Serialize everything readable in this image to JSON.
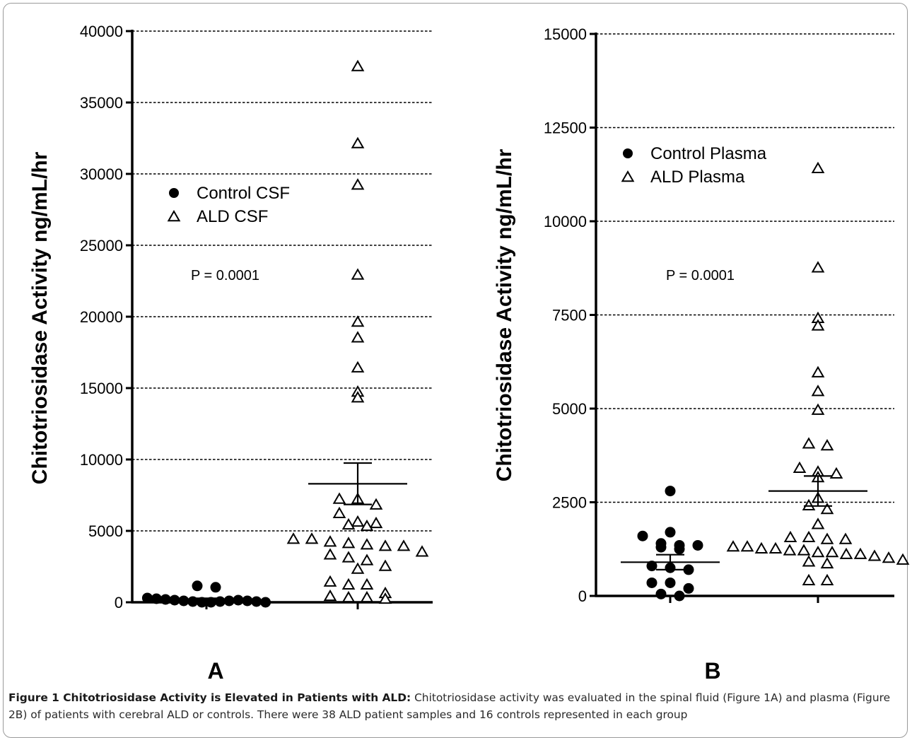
{
  "chart_data": [
    {
      "type": "scatter",
      "panel_label": "A",
      "ylabel": "Chitotriosidase Activity  ng/mL/hr",
      "ylim": [
        0,
        40000
      ],
      "yticks": [
        0,
        5000,
        10000,
        15000,
        20000,
        25000,
        30000,
        35000,
        40000
      ],
      "grid": "dashed horizontal",
      "legend_placement": "upper-left",
      "annotation": "P = 0.0001",
      "groups": [
        {
          "name": "Control CSF",
          "marker": "filled-circle",
          "values": [
            1150,
            1050,
            300,
            250,
            200,
            150,
            100,
            50,
            0,
            0,
            50,
            100,
            150,
            100,
            50,
            0
          ],
          "mean": 200,
          "sem": 80
        },
        {
          "name": "ALD CSF",
          "marker": "open-triangle",
          "values": [
            37500,
            32100,
            29200,
            22900,
            19600,
            18500,
            16400,
            14700,
            14300,
            7200,
            7200,
            6800,
            6200,
            5600,
            5500,
            5400,
            5300,
            4400,
            4400,
            4200,
            4100,
            4000,
            3900,
            3900,
            3500,
            3300,
            3100,
            2900,
            2500,
            2300,
            1400,
            1200,
            1200,
            600,
            400,
            300,
            300,
            200
          ],
          "mean": 8300,
          "sem": 1450
        }
      ]
    },
    {
      "type": "scatter",
      "panel_label": "B",
      "ylabel": "Chitotriosidase Activity  ng/mL/hr",
      "ylim": [
        0,
        15000
      ],
      "yticks": [
        0,
        2500,
        5000,
        7500,
        10000,
        12500,
        15000
      ],
      "grid": "dashed horizontal",
      "legend_placement": "upper-left",
      "annotation": "P = 0.0001",
      "groups": [
        {
          "name": "Control Plasma",
          "marker": "filled-circle",
          "values": [
            2800,
            1700,
            1600,
            1400,
            1350,
            1350,
            1300,
            1250,
            800,
            750,
            700,
            350,
            350,
            200,
            50,
            0
          ],
          "mean": 900,
          "sem": 200
        },
        {
          "name": "ALD Plasma",
          "marker": "open-triangle",
          "values": [
            11400,
            8750,
            7400,
            7200,
            5950,
            5450,
            4950,
            4050,
            4000,
            3400,
            3300,
            3250,
            3150,
            2600,
            2400,
            2300,
            1900,
            1550,
            1550,
            1500,
            1500,
            1300,
            1300,
            1250,
            1250,
            1200,
            1200,
            1150,
            1150,
            1100,
            1100,
            1050,
            1000,
            950,
            900,
            850,
            400,
            400
          ],
          "mean": 2800,
          "sem": 400
        }
      ]
    }
  ],
  "caption": {
    "title": "Figure 1 Chitotriosidase Activity is Elevated in Patients with ALD:",
    "text": " Chitotriosidase activity was evaluated in the spinal fluid (Figure 1A) and plasma (Figure 2B) of patients with cerebral ALD or controls. There were 38 ALD patient samples and 16 controls represented in each group"
  },
  "colors": {
    "ink": "#000000",
    "frame": "#9a9a9a",
    "caption_text": "#2a2a2a"
  }
}
